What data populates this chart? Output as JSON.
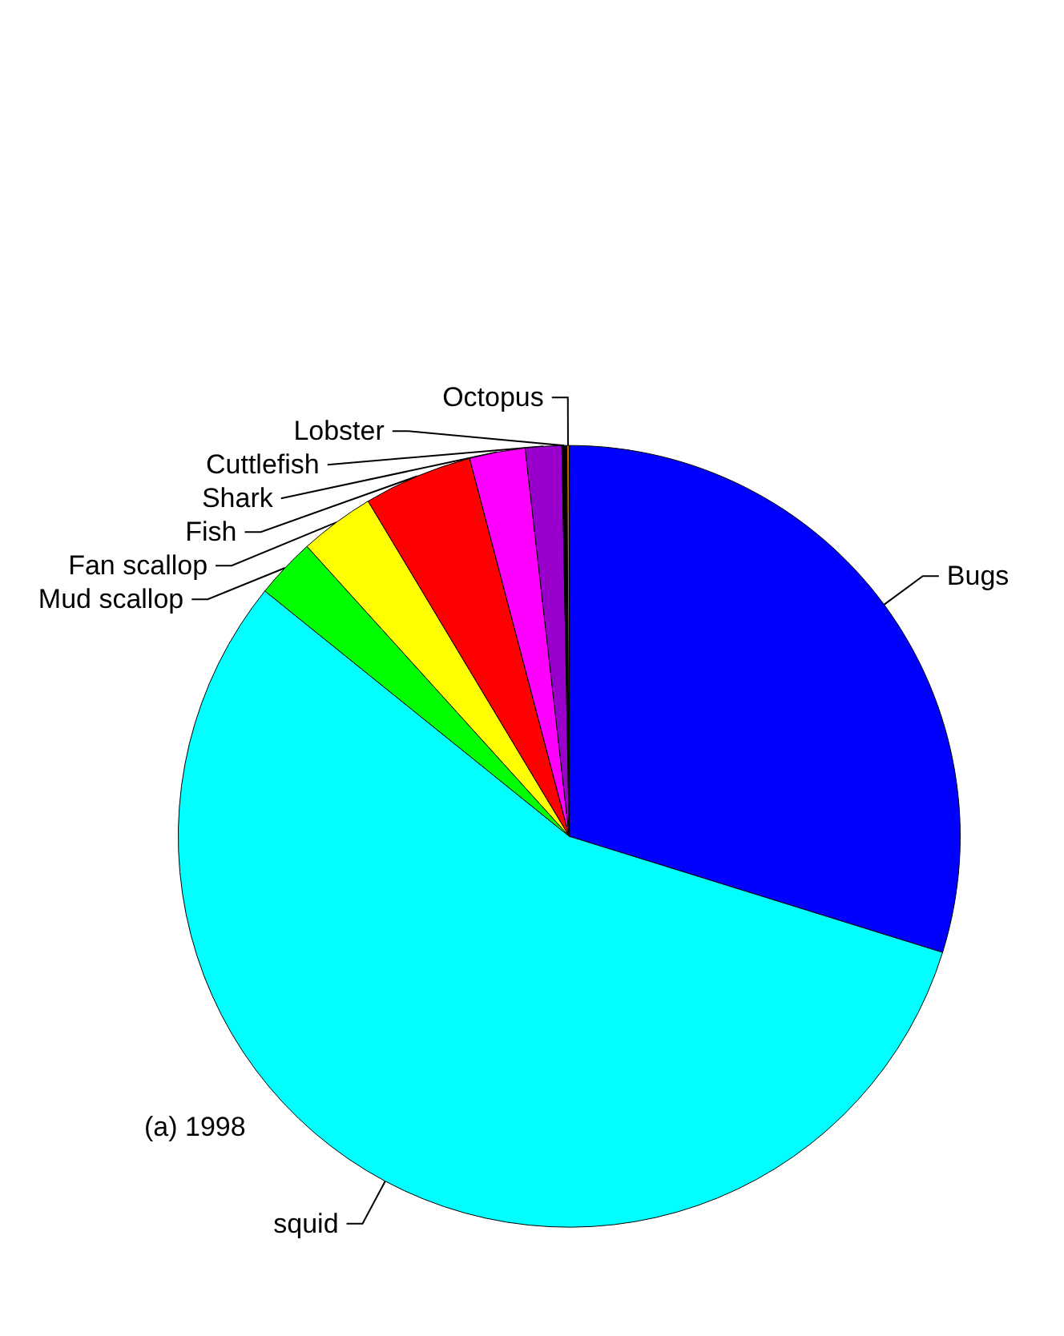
{
  "chart_data": {
    "type": "pie",
    "categories": [
      "Bugs",
      "squid",
      "Mud scallop",
      "Fan scallop",
      "Fish",
      "Shark",
      "Cuttlefish",
      "Lobster",
      "Octopus"
    ],
    "values": [
      29.8,
      56.0,
      2.5,
      3.1,
      4.5,
      2.3,
      1.5,
      0.2,
      0.1
    ],
    "colors": [
      "#0000ff",
      "#00ffff",
      "#00ff00",
      "#ffff00",
      "#ff0000",
      "#ff00ff",
      "#9900cc",
      "#000000",
      "#cc6600"
    ],
    "annotations": [
      "(a) 1998"
    ],
    "legend": false
  }
}
